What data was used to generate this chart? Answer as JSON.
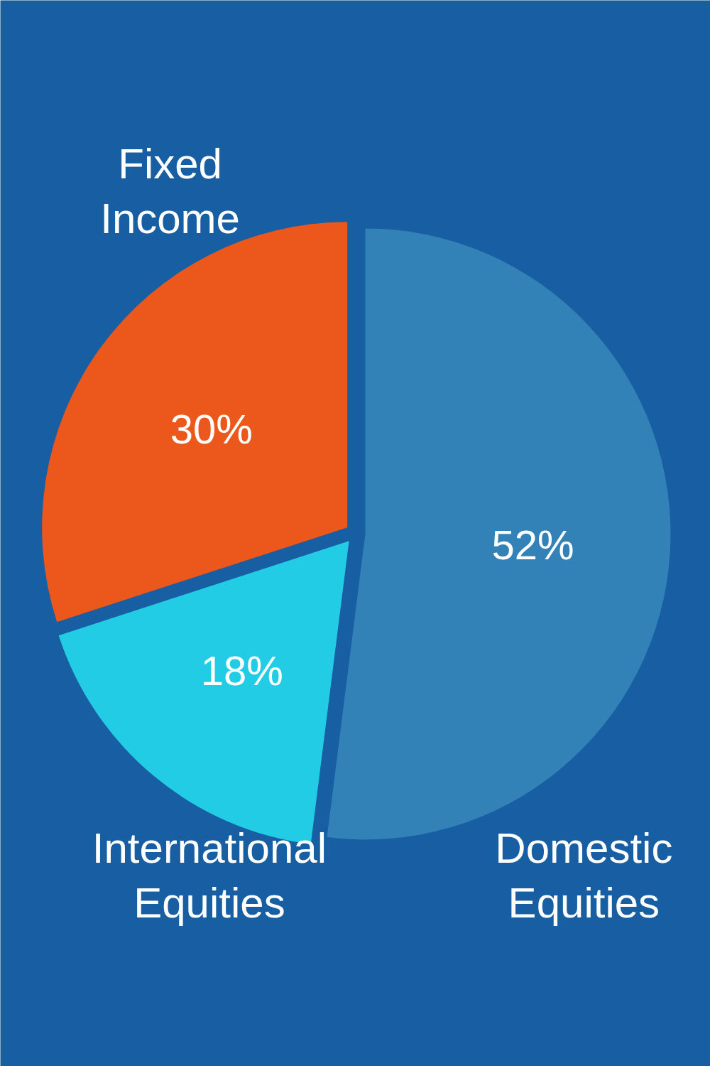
{
  "chart_data": {
    "type": "pie",
    "categories": [
      "Domestic Equities",
      "International Equities",
      "Fixed Income"
    ],
    "values": [
      52,
      18,
      30
    ],
    "colors": [
      "#3282b8",
      "#22cce4",
      "#ec571c"
    ],
    "value_labels": [
      "52%",
      "18%",
      "30%"
    ]
  }
}
